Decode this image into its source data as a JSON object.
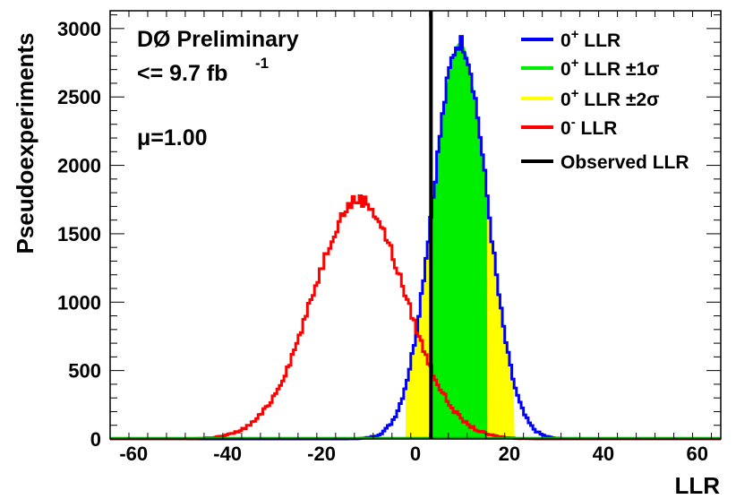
{
  "chart_data": {
    "type": "line",
    "title": "",
    "xlabel": "LLR",
    "ylabel": "Pseudoexperiments",
    "xlim": [
      -65,
      65
    ],
    "ylim": [
      0,
      3130
    ],
    "x_ticks": [
      -60,
      -40,
      -20,
      0,
      20,
      40,
      60
    ],
    "x_tick_labels": [
      "-60",
      "-40",
      "-20",
      "0",
      "20",
      "40",
      "60"
    ],
    "y_ticks": [
      0,
      500,
      1000,
      1500,
      2000,
      2500,
      3000
    ],
    "y_tick_labels": [
      "0",
      "500",
      "1000",
      "1500",
      "2000",
      "2500",
      "3000"
    ],
    "annotations": {
      "experiment": "DØ Preliminary",
      "lumi": "<= 9.7 fb",
      "lumi_exp": "-1",
      "mu": "μ=1.00"
    },
    "series": [
      {
        "name": "0+ LLR",
        "label_base": "0",
        "label_sup": "+",
        "label_rest": " LLR",
        "color": "#0000ff",
        "mean": 9.5,
        "sigma": 5.8,
        "peak": 2900
      },
      {
        "name": "0- LLR",
        "label_base": "0",
        "label_sup": "-",
        "label_rest": " LLR",
        "color": "#ff0000",
        "mean": -12,
        "sigma": 9.8,
        "peak": 1750
      }
    ],
    "bands": [
      {
        "name": "0+ LLR ±1σ",
        "label_base": "0",
        "label_sup": "+",
        "label_rest": " LLR ±1σ",
        "color": "#00ee00",
        "range": [
          3.7,
          15.3
        ]
      },
      {
        "name": "0+ LLR ±2σ",
        "label_base": "0",
        "label_sup": "+",
        "label_rest": " LLR ±2σ",
        "color": "#ffff00",
        "range": [
          -2.1,
          21.1
        ]
      }
    ],
    "observed": {
      "name": "Observed LLR",
      "color": "#000000",
      "value": 3.3
    },
    "legend_position": "top-right"
  }
}
